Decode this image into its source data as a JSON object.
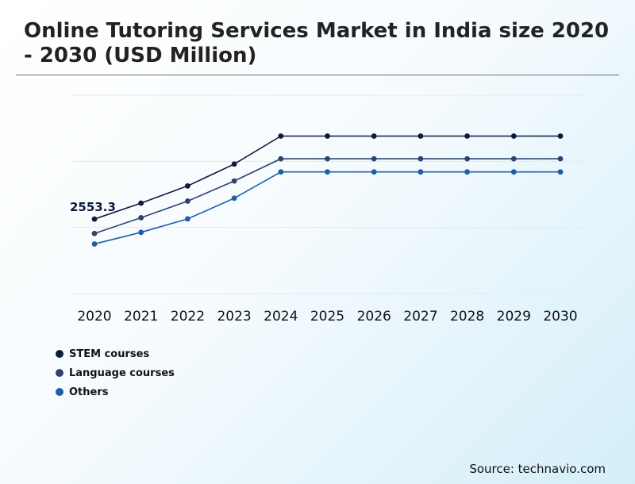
{
  "header": {
    "title": "Online Tutoring Services Market in India size 2020 - 2030 (USD Million)"
  },
  "footer": {
    "source": "Source: technavio.com"
  },
  "chart_data": {
    "type": "line",
    "title": "Online Tutoring Services Market in India size 2020 - 2030 (USD Million)",
    "xlabel": "",
    "ylabel": "",
    "x": [
      "2020",
      "2021",
      "2022",
      "2023",
      "2024",
      "2025",
      "2026",
      "2027",
      "2028",
      "2029",
      "2030"
    ],
    "ylim": [
      0,
      6800
    ],
    "grid": true,
    "legend_position": "bottom-left",
    "series": [
      {
        "name": "STEM courses",
        "color": "#0d1b3e",
        "values": [
          2553.3,
          3100,
          3690,
          4440,
          5400,
          5400,
          5400,
          5400,
          5400,
          5400,
          5400
        ]
      },
      {
        "name": "Language courses",
        "color": "#2e4370",
        "values": [
          2060,
          2600,
          3170,
          3860,
          4620,
          4620,
          4620,
          4620,
          4620,
          4620,
          4620
        ]
      },
      {
        "name": "Others",
        "color": "#1f5ea8",
        "values": [
          1700,
          2100,
          2560,
          3270,
          4170,
          4170,
          4170,
          4170,
          4170,
          4170,
          4170
        ]
      }
    ],
    "annotations": [
      {
        "text": "2553.3",
        "series": 0,
        "index": 0
      }
    ]
  }
}
